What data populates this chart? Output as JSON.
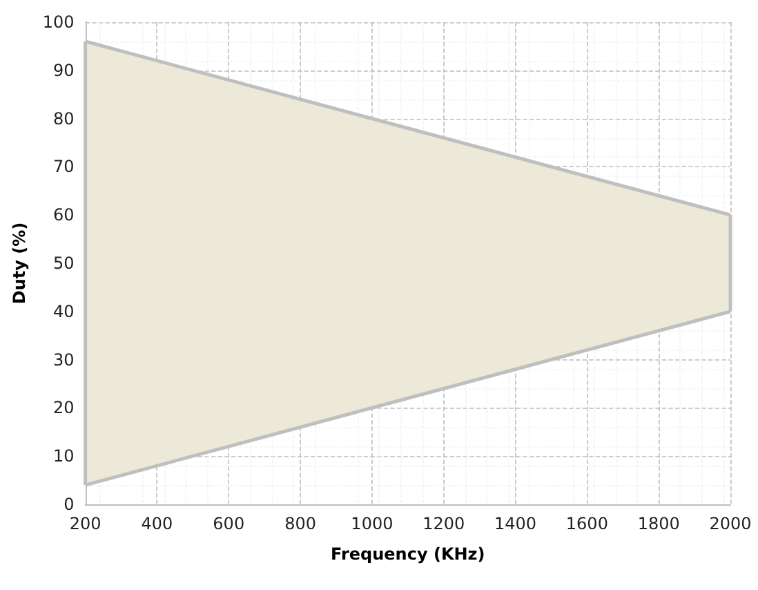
{
  "chart_data": {
    "type": "line",
    "xlabel": "Frequency (KHz)",
    "ylabel": "Duty (%)",
    "x": [
      200,
      2000
    ],
    "series": [
      {
        "color": "#bfbfbf",
        "values": [
          96,
          60
        ],
        "lower": [
          4,
          40
        ],
        "upper": [
          96,
          60
        ]
      },
      {
        "color": "#bfbfbf",
        "values": [
          4,
          40
        ]
      }
    ],
    "xlim": [
      200,
      2000
    ],
    "xticks": [
      200,
      400,
      600,
      800,
      1000,
      1200,
      1400,
      1600,
      1800,
      2000
    ],
    "ylim": [
      0,
      100
    ],
    "yticks": [
      0,
      10,
      20,
      30,
      40,
      50,
      60,
      70,
      80,
      90,
      100
    ],
    "grid": true,
    "marker": "none",
    "line_style": "solid"
  }
}
